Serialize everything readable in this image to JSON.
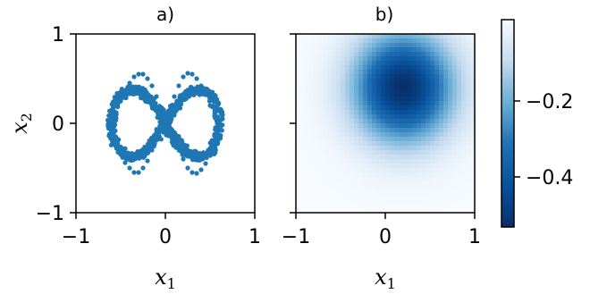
{
  "chart_data": [
    {
      "type": "scatter",
      "title": "a)",
      "xlabel": "x",
      "xlabel_sub": "1",
      "ylabel": "x",
      "ylabel_sub": "2",
      "xlim": [
        -1,
        1
      ],
      "ylim": [
        -1,
        1
      ],
      "xticks": [
        -1,
        0,
        1
      ],
      "yticks": [
        -1,
        0,
        1
      ],
      "xtick_labels": [
        "−1",
        "0",
        "1"
      ],
      "ytick_labels": [
        "−1",
        "0",
        "1"
      ],
      "color": "#1f77b4",
      "series": [
        {
          "description_shape": "lemniscate (figure-eight) with noise",
          "x": [
            0.0,
            0.05,
            0.1,
            0.15,
            0.2,
            0.25,
            0.3,
            0.35,
            0.4,
            0.45,
            0.5,
            0.55,
            0.58,
            0.6,
            0.58,
            0.55,
            0.5,
            0.45,
            0.4,
            0.35,
            0.3,
            0.25,
            0.2,
            0.15,
            0.1,
            0.05,
            0.0,
            -0.05,
            -0.1,
            -0.15,
            -0.2,
            -0.25,
            -0.3,
            -0.35,
            -0.4,
            -0.45,
            -0.5,
            -0.55,
            -0.58,
            -0.6,
            -0.58,
            -0.55,
            -0.5,
            -0.45,
            -0.4,
            -0.35,
            -0.3,
            -0.25,
            -0.2,
            -0.15,
            -0.1,
            -0.05
          ],
          "y": [
            0.0,
            0.15,
            0.3,
            0.42,
            0.52,
            0.56,
            0.55,
            0.5,
            0.42,
            0.32,
            0.2,
            0.08,
            0.0,
            -0.05,
            -0.15,
            -0.26,
            -0.36,
            -0.45,
            -0.52,
            -0.56,
            -0.55,
            -0.5,
            -0.4,
            -0.28,
            -0.15,
            -0.05,
            0.0,
            0.15,
            0.3,
            0.42,
            0.5,
            0.55,
            0.55,
            0.52,
            0.45,
            0.36,
            0.25,
            0.12,
            0.05,
            -0.02,
            -0.12,
            -0.24,
            -0.35,
            -0.44,
            -0.5,
            -0.55,
            -0.55,
            -0.5,
            -0.42,
            -0.3,
            -0.17,
            -0.05
          ]
        }
      ]
    },
    {
      "type": "heatmap",
      "title": "b)",
      "xlabel": "x",
      "xlabel_sub": "1",
      "xlim": [
        -1,
        1
      ],
      "ylim": [
        -1,
        1
      ],
      "xticks": [
        -1,
        0,
        1
      ],
      "xtick_labels": [
        "−1",
        "0",
        "1"
      ],
      "colormap": "Blues_r",
      "field": {
        "center_x": 0.2,
        "center_y": 0.4,
        "min": -0.53,
        "max": -0.01
      },
      "colorbar": {
        "ticks": [
          -0.2,
          -0.4
        ],
        "tick_labels": [
          "−0.2",
          "−0.4"
        ],
        "range": [
          -0.53,
          -0.01
        ]
      }
    }
  ]
}
